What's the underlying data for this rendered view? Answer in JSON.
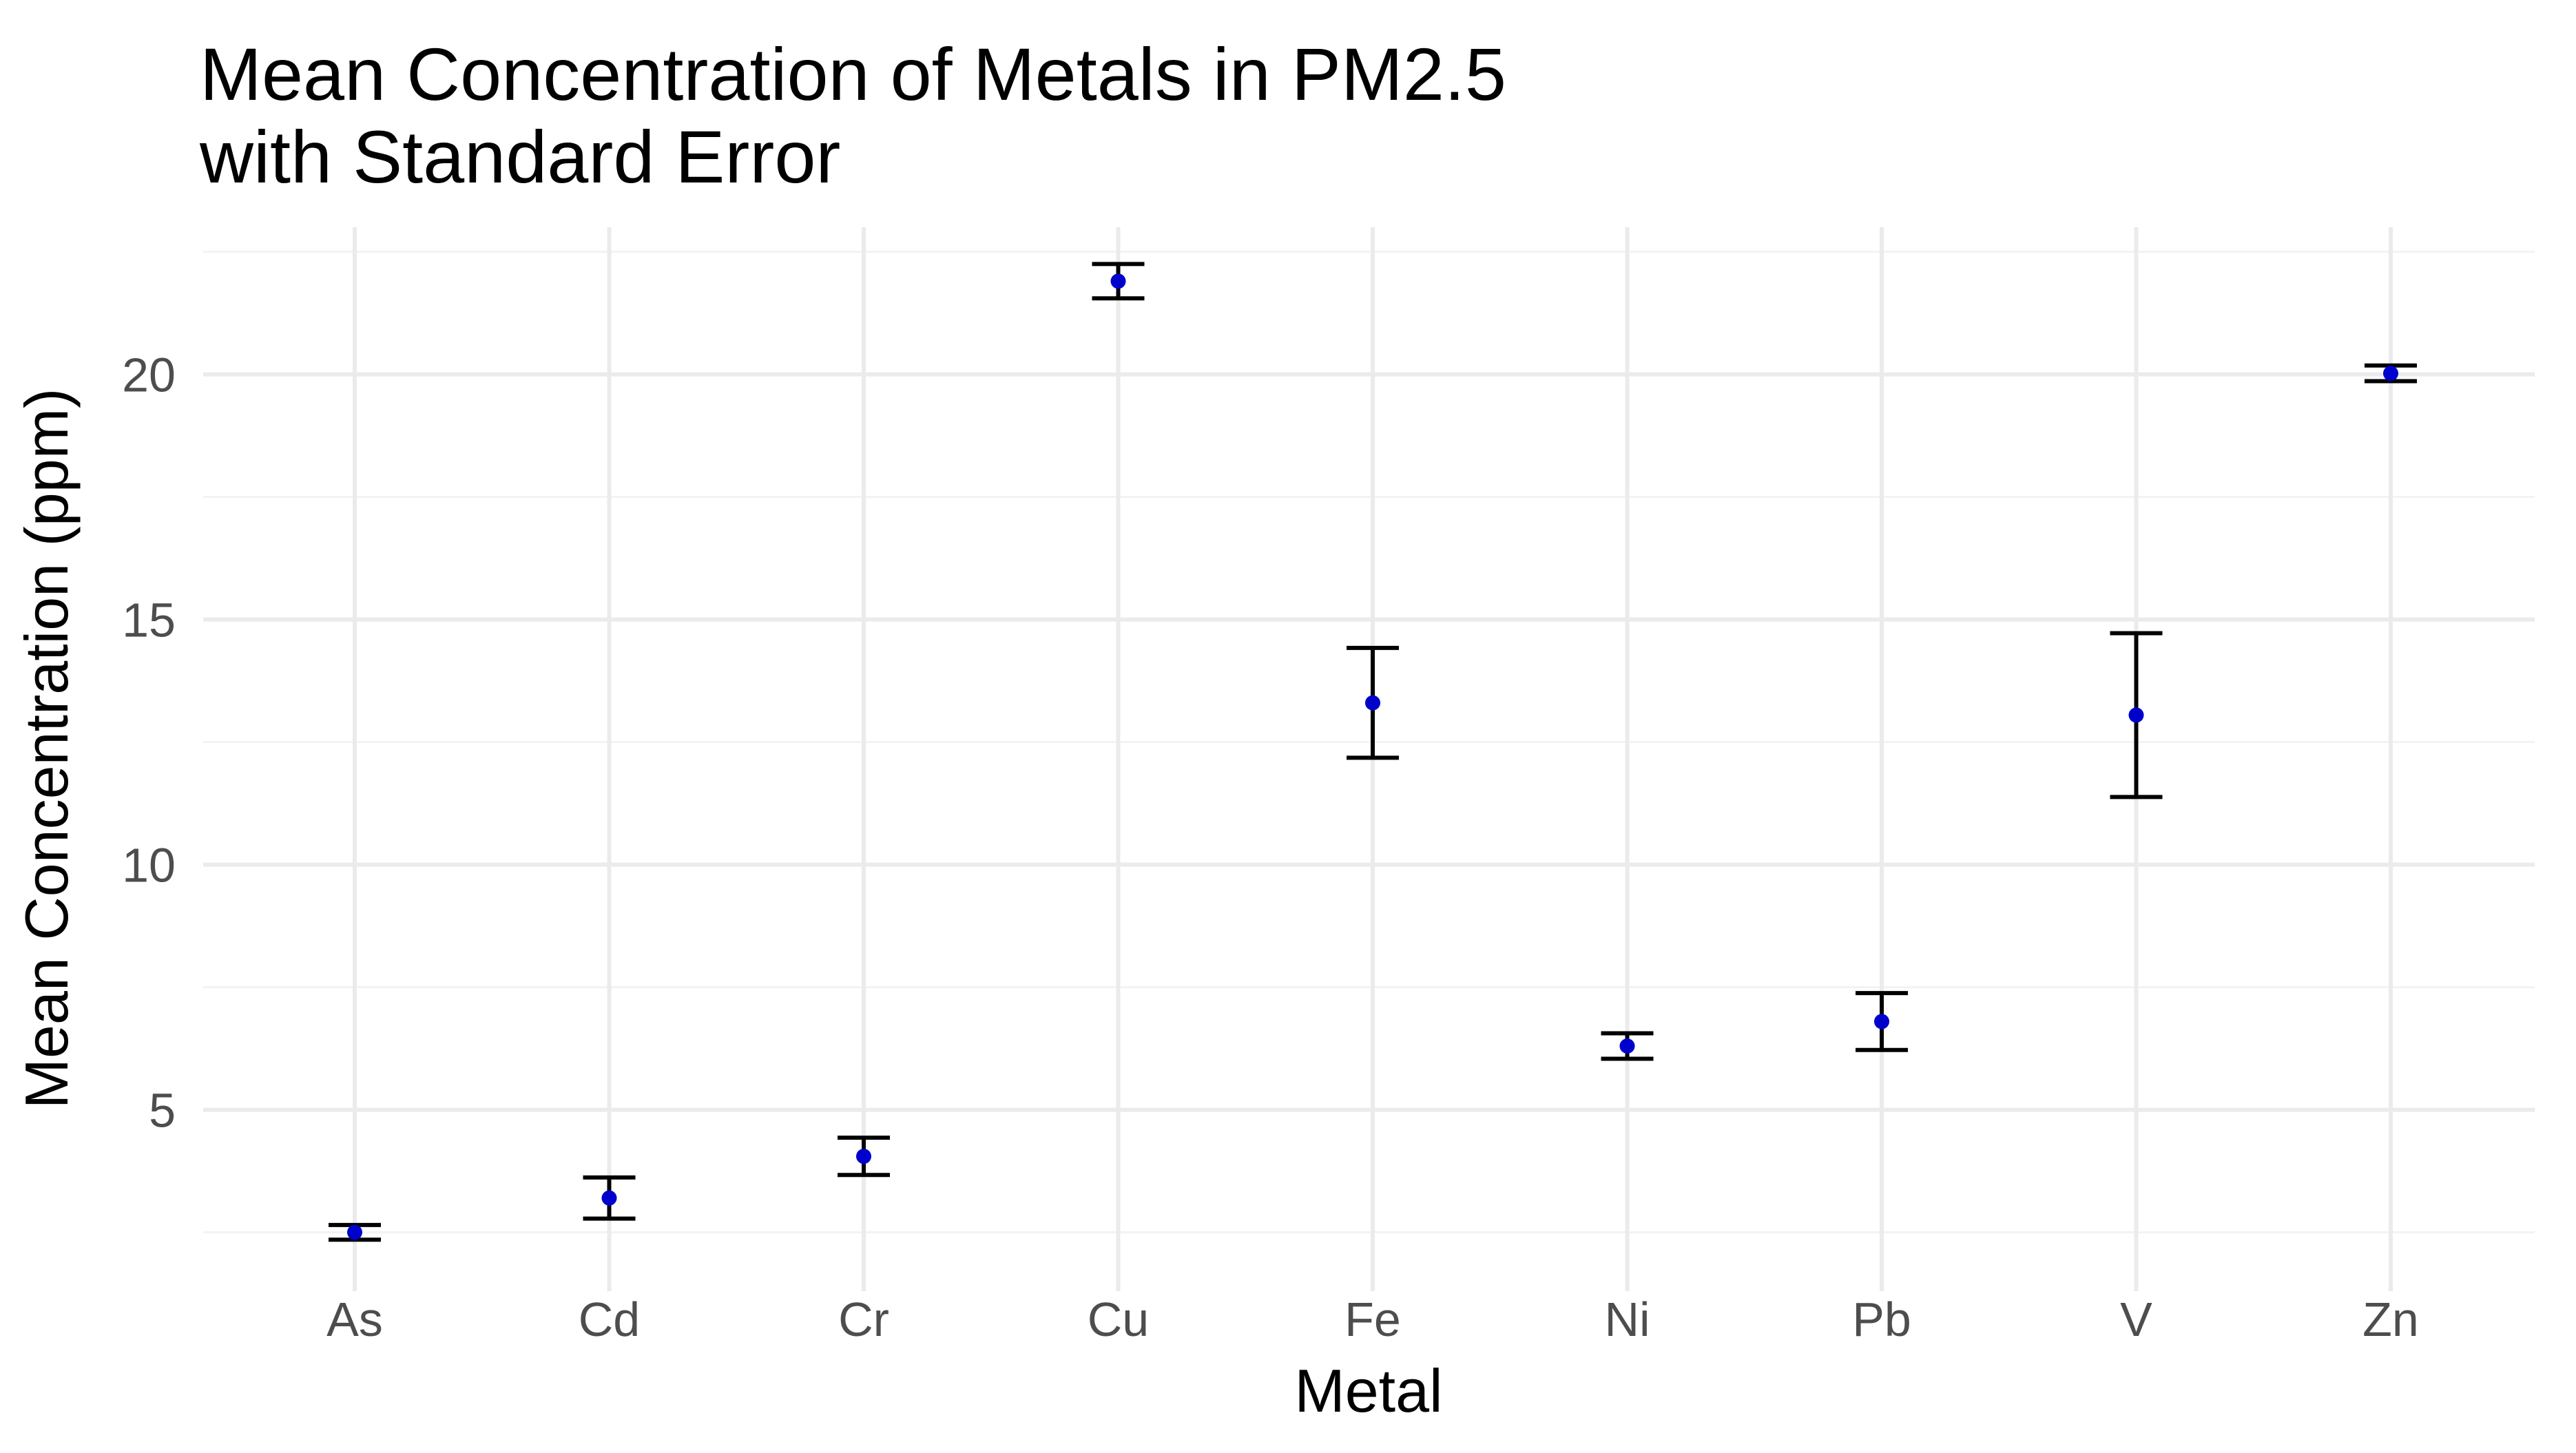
{
  "chart_data": {
    "type": "scatter",
    "title": "Mean Concentration of Metals in PM2.5\nwith Standard Error",
    "title_lines": [
      "Mean Concentration of Metals in PM2.5",
      "with Standard Error"
    ],
    "xlabel": "Metal",
    "ylabel": "Mean Concentration (ppm)",
    "categories": [
      "As",
      "Cd",
      "Cr",
      "Cu",
      "Fe",
      "Ni",
      "Pb",
      "V",
      "Zn"
    ],
    "values": [
      2.5,
      3.2,
      4.05,
      21.9,
      13.3,
      6.3,
      6.8,
      13.05,
      20.02
    ],
    "error_lower": [
      2.35,
      2.78,
      3.67,
      21.55,
      12.18,
      6.04,
      6.22,
      11.38,
      19.86
    ],
    "error_upper": [
      2.65,
      3.62,
      4.43,
      22.25,
      14.42,
      6.56,
      7.38,
      14.72,
      20.18
    ],
    "ylim": [
      1.3,
      23.0
    ],
    "yticks": [
      5,
      10,
      15,
      20
    ],
    "point_color": "#0000cd",
    "errorbar_color": "#000000",
    "grid": true,
    "legend": "none"
  }
}
